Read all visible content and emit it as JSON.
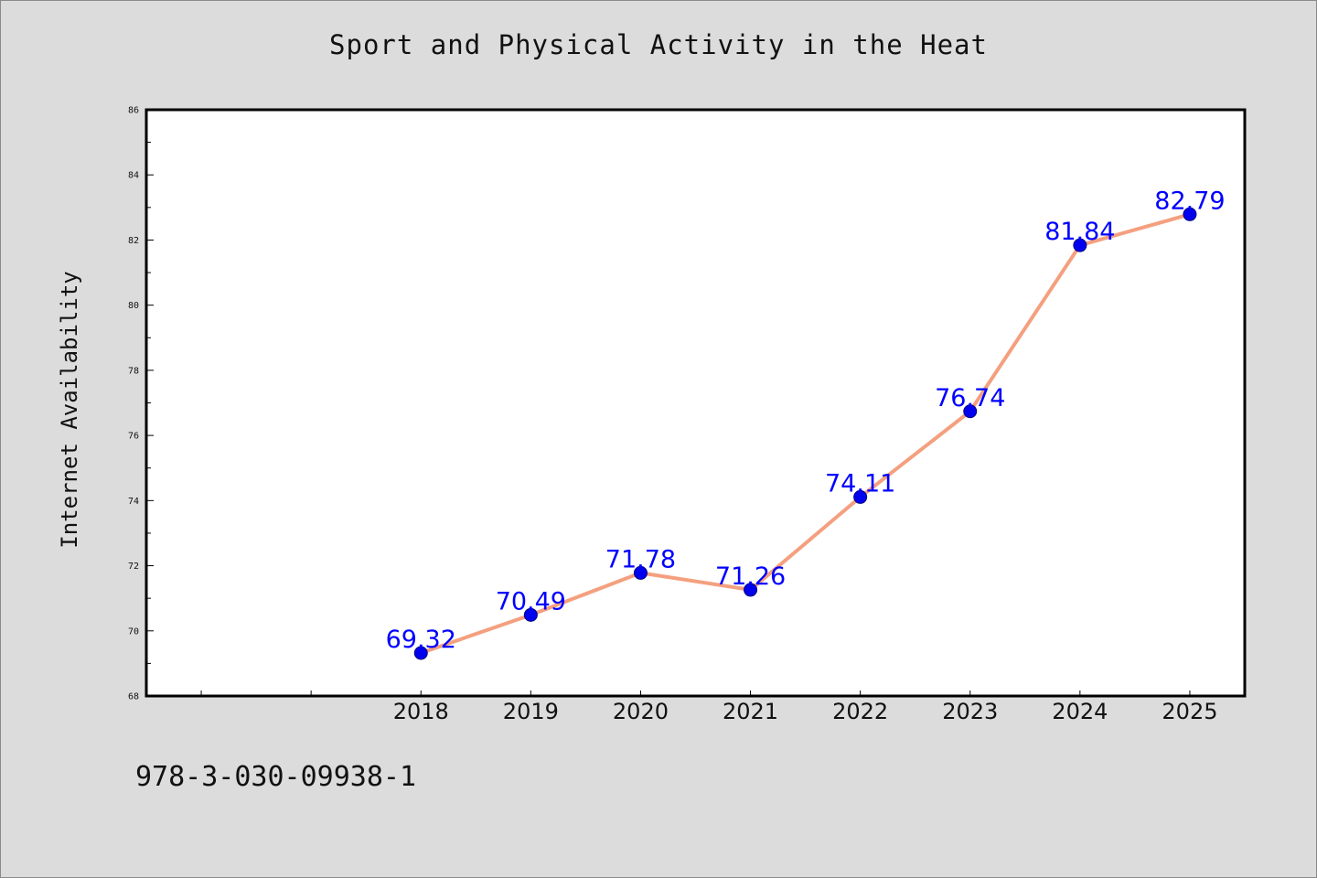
{
  "title": "Sport and Physical Activity in the Heat",
  "footer_text": "978-3-030-09938-1",
  "chart_data": {
    "type": "line",
    "title": "Sport and Physical Activity in the Heat",
    "xlabel": "",
    "ylabel": "Internet Availability",
    "categories": [
      "2018",
      "2019",
      "2020",
      "2021",
      "2022",
      "2023",
      "2024",
      "2025"
    ],
    "values": [
      69.32,
      70.49,
      71.78,
      71.26,
      74.11,
      76.74,
      81.84,
      82.79
    ],
    "data_labels": [
      "69.32",
      "70.49",
      "71.78",
      "71.26",
      "74.11",
      "76.74",
      "81.84",
      "82.79"
    ],
    "ylim": [
      68,
      86
    ],
    "y_ticks": [
      68,
      70,
      72,
      74,
      76,
      78,
      80,
      82,
      84,
      86
    ],
    "x_slots": 10,
    "grid": false,
    "legend": "none",
    "colors": {
      "line": "#f4a07f",
      "marker": "#0000ee",
      "marker_edge": "#000080",
      "data_label": "#0000ff",
      "background": "#dcdcdc",
      "plot_background": "#ffffff"
    }
  }
}
